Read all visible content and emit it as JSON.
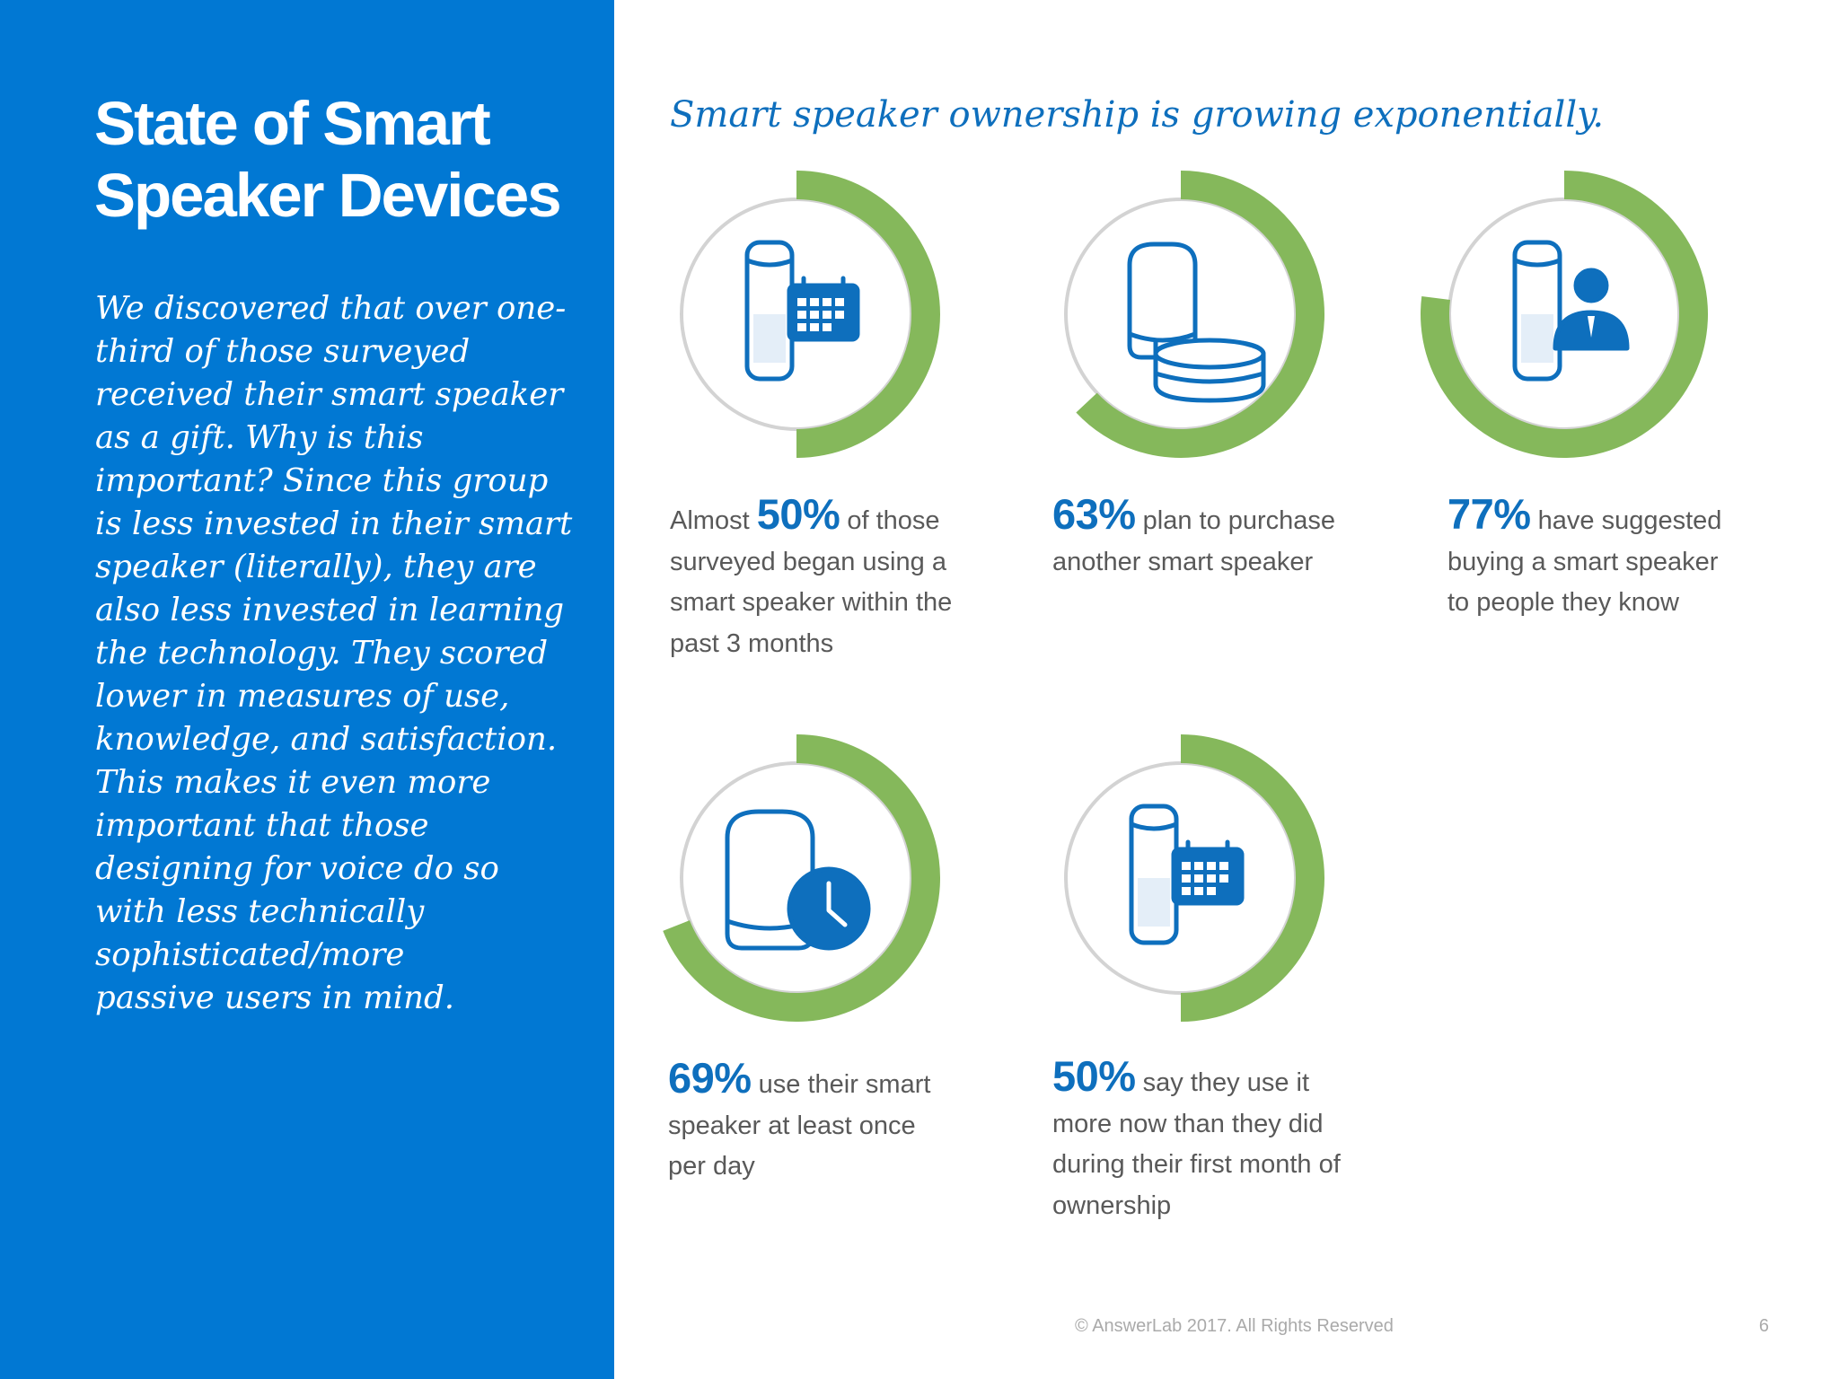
{
  "sidebar": {
    "title_line1": "State of Smart",
    "title_line2": "Speaker Devices",
    "body_lines": [
      "We discovered that over one-",
      "third of those surveyed",
      "received their smart speaker",
      "as a gift. Why is this",
      "important? Since this group",
      "is less invested in their smart",
      "speaker (literally), they are",
      "also less invested in learning",
      "the technology. They scored",
      "lower in measures of use,",
      "knowledge, and satisfaction.",
      "This makes it even more",
      "important that those",
      "designing for voice do so",
      "with less technically",
      "sophisticated/more",
      "passive users in mind."
    ],
    "background": "#0178d3"
  },
  "headline": "Smart speaker ownership is growing exponentially.",
  "colors": {
    "accent_blue": "#0e6fbd",
    "ring_green": "#85b85b",
    "ring_track": "#d3d3d3",
    "body_text": "#595959"
  },
  "stats": [
    {
      "value": 0.5,
      "icon": "cylinder-speaker-calendar-icon",
      "pre": "Almost ",
      "big": "50%",
      "post": " of those",
      "rest": [
        "surveyed began using a",
        "smart speaker within the",
        "past 3 months"
      ]
    },
    {
      "value": 0.63,
      "icon": "speaker-and-puck-icon",
      "pre": "",
      "big": "63%",
      "post": " plan to purchase",
      "rest": [
        "another smart speaker"
      ]
    },
    {
      "value": 0.77,
      "icon": "cylinder-speaker-person-icon",
      "pre": "",
      "big": "77%",
      "post": " have suggested",
      "rest": [
        "buying a smart speaker",
        "to people they know"
      ]
    },
    {
      "value": 0.69,
      "icon": "speaker-clock-icon",
      "pre": "",
      "big": "69%",
      "post": " use their smart",
      "rest": [
        "speaker at least once",
        "per day"
      ]
    },
    {
      "value": 0.5,
      "icon": "cylinder-speaker-calendar-icon",
      "pre": "",
      "big": "50%",
      "post": " say they use it",
      "rest": [
        "more now than they did",
        "during their first month of",
        "ownership"
      ]
    }
  ],
  "footer": "© AnswerLab 2017. All Rights Reserved",
  "page_number": "6"
}
